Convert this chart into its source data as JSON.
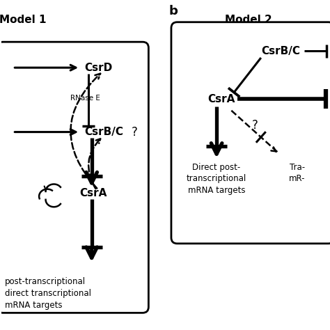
{
  "bg_color": "#ffffff",
  "label_b": "b",
  "model1_title": "Model 1",
  "model2_title": "Model 2",
  "figsize": [
    4.74,
    4.74
  ],
  "dpi": 100
}
